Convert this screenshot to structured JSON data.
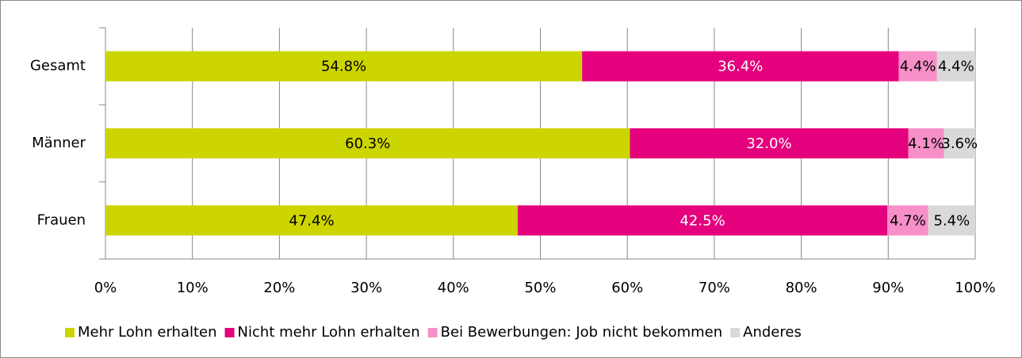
{
  "chart_data": {
    "type": "stacked_barh",
    "categories": [
      "Gesamt",
      "Männer",
      "Frauen"
    ],
    "series": [
      {
        "name": "Mehr Lohn erhalten",
        "color": "#cdd500",
        "values": [
          54.8,
          60.3,
          47.4
        ],
        "value_labels": [
          "54.8%",
          "60.3%",
          "47.4%"
        ]
      },
      {
        "name": "Nicht mehr Lohn erhalten",
        "color": "#e5007d",
        "values": [
          36.4,
          32.0,
          42.5
        ],
        "value_labels": [
          "36.4%",
          "32.0%",
          "42.5%"
        ]
      },
      {
        "name": "Bei Bewerbungen: Job nicht bekommen",
        "color": "#f78fc8",
        "values": [
          4.4,
          4.1,
          4.7
        ],
        "value_labels": [
          "4.4%",
          "4.1%",
          "4.7%"
        ]
      },
      {
        "name": "Anderes",
        "color": "#d9d9d9",
        "values": [
          4.4,
          3.6,
          5.4
        ],
        "value_labels": [
          "4.4%",
          "3.6%",
          "5.4%"
        ]
      }
    ],
    "xlim": [
      0,
      100
    ],
    "xticks": [
      {
        "value": 0,
        "label": "0%"
      },
      {
        "value": 10,
        "label": "10%"
      },
      {
        "value": 20,
        "label": "20%"
      },
      {
        "value": 30,
        "label": "30%"
      },
      {
        "value": 40,
        "label": "40%"
      },
      {
        "value": 50,
        "label": "50%"
      },
      {
        "value": 60,
        "label": "60%"
      },
      {
        "value": 70,
        "label": "70%"
      },
      {
        "value": 80,
        "label": "80%"
      },
      {
        "value": 90,
        "label": "90%"
      },
      {
        "value": 100,
        "label": "100%"
      }
    ],
    "grid": true,
    "legend": "bottom"
  }
}
